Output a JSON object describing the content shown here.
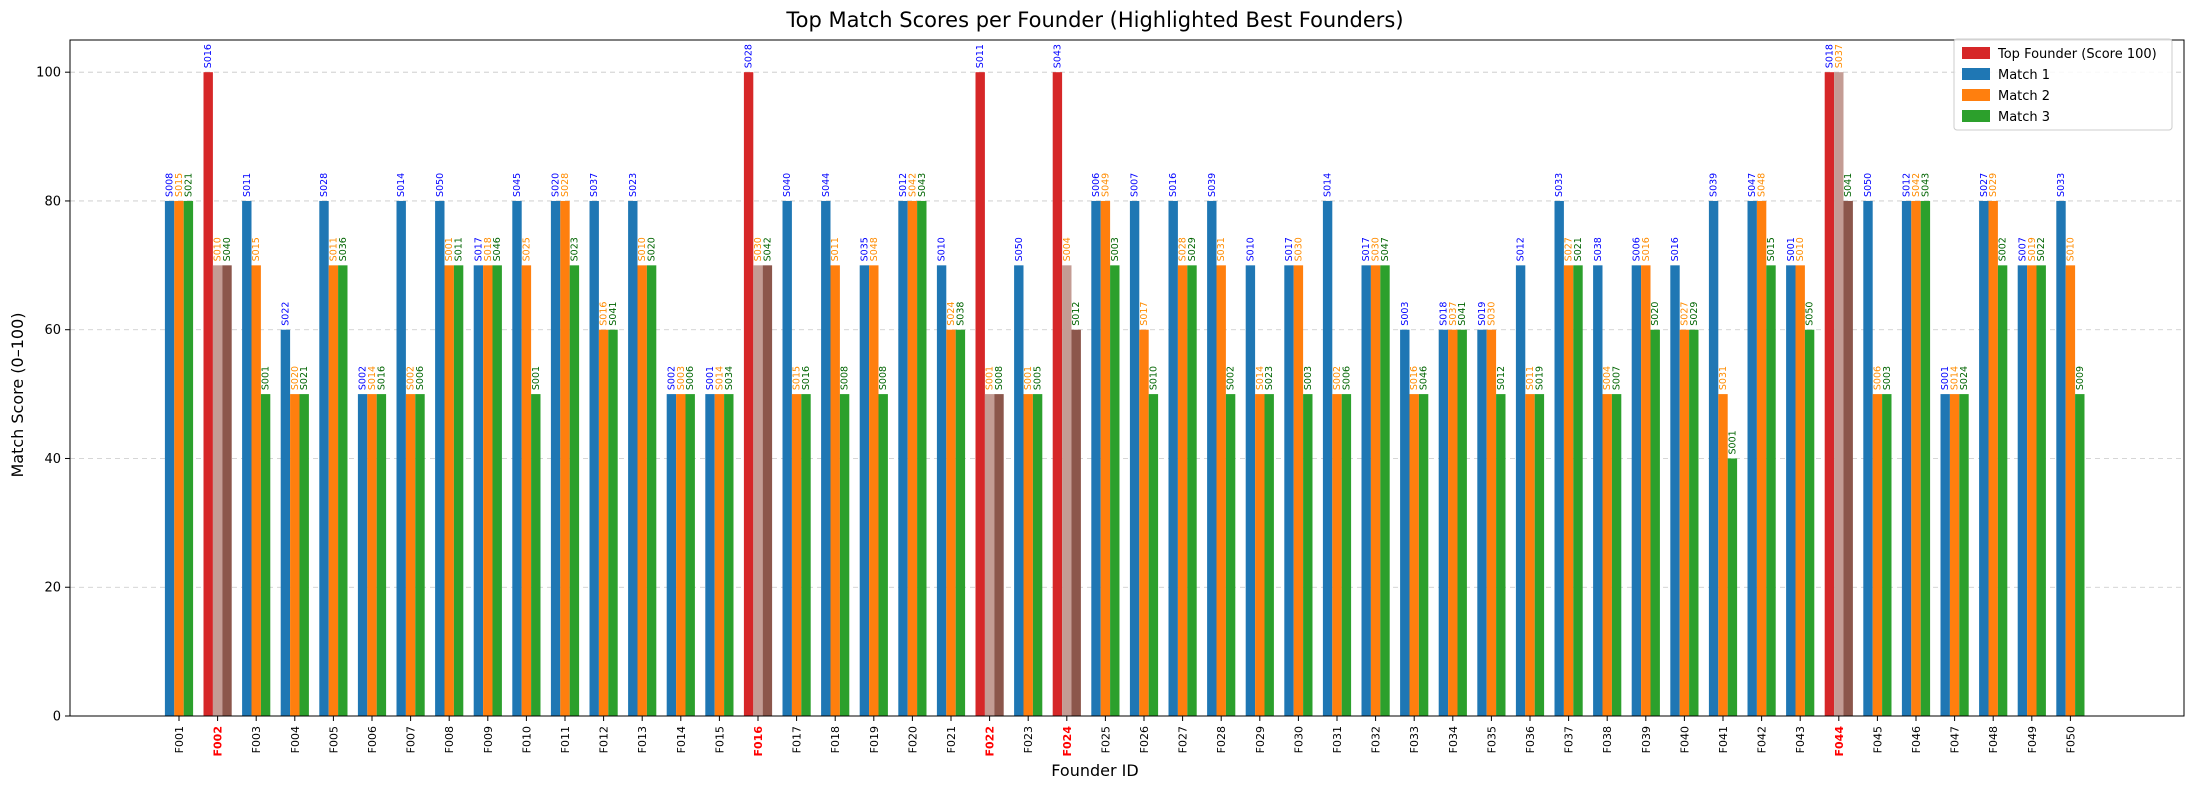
{
  "chart_data": {
    "type": "bar",
    "title": "Top Match Scores per Founder (Highlighted Best Founders)",
    "xlabel": "Founder ID",
    "ylabel": "Match Score (0–100)",
    "ylim": [
      0,
      105
    ],
    "yticks": [
      0,
      20,
      40,
      60,
      80,
      100
    ],
    "grid": "y dashed",
    "legend_position": "top-right",
    "legend": [
      {
        "label": "Top Founder (Score 100)",
        "color": "#d62728"
      },
      {
        "label": "Match 1",
        "color": "#1f77b4"
      },
      {
        "label": "Match 2",
        "color": "#ff7f0e"
      },
      {
        "label": "Match 3",
        "color": "#2ca02c"
      }
    ],
    "colors": {
      "match1": "#1f77b4",
      "match2": "#ff7f0e",
      "match3": "#2ca02c",
      "top": "#d62728",
      "top_match2": "#c49c94",
      "top_match3": "#8c564b",
      "label1": "#0000ff",
      "label2": "#ff8c00",
      "label3": "#006400",
      "highlight_tick": "#ff0000"
    },
    "founders": [
      {
        "id": "F001",
        "top": false,
        "m": [
          [
            80,
            "S008"
          ],
          [
            80,
            "S015"
          ],
          [
            80,
            "S021"
          ]
        ]
      },
      {
        "id": "F002",
        "top": true,
        "m": [
          [
            100,
            "S016"
          ],
          [
            70,
            "S010"
          ],
          [
            70,
            "S040"
          ]
        ]
      },
      {
        "id": "F003",
        "top": false,
        "m": [
          [
            80,
            "S011"
          ],
          [
            70,
            "S015"
          ],
          [
            50,
            "S001"
          ]
        ]
      },
      {
        "id": "F004",
        "top": false,
        "m": [
          [
            60,
            "S022"
          ],
          [
            50,
            "S020"
          ],
          [
            50,
            "S021"
          ]
        ]
      },
      {
        "id": "F005",
        "top": false,
        "m": [
          [
            80,
            "S028"
          ],
          [
            70,
            "S011"
          ],
          [
            70,
            "S036"
          ]
        ]
      },
      {
        "id": "F006",
        "top": false,
        "m": [
          [
            50,
            "S002"
          ],
          [
            50,
            "S014"
          ],
          [
            50,
            "S016"
          ]
        ]
      },
      {
        "id": "F007",
        "top": false,
        "m": [
          [
            80,
            "S014"
          ],
          [
            50,
            "S002"
          ],
          [
            50,
            "S006"
          ]
        ]
      },
      {
        "id": "F008",
        "top": false,
        "m": [
          [
            80,
            "S050"
          ],
          [
            70,
            "S001"
          ],
          [
            70,
            "S011"
          ]
        ]
      },
      {
        "id": "F009",
        "top": false,
        "m": [
          [
            70,
            "S017"
          ],
          [
            70,
            "S018"
          ],
          [
            70,
            "S046"
          ]
        ]
      },
      {
        "id": "F010",
        "top": false,
        "m": [
          [
            80,
            "S045"
          ],
          [
            70,
            "S025"
          ],
          [
            50,
            "S001"
          ]
        ]
      },
      {
        "id": "F011",
        "top": false,
        "m": [
          [
            80,
            "S020"
          ],
          [
            80,
            "S028"
          ],
          [
            70,
            "S023"
          ]
        ]
      },
      {
        "id": "F012",
        "top": false,
        "m": [
          [
            80,
            "S037"
          ],
          [
            60,
            "S016"
          ],
          [
            60,
            "S041"
          ]
        ]
      },
      {
        "id": "F013",
        "top": false,
        "m": [
          [
            80,
            "S023"
          ],
          [
            70,
            "S010"
          ],
          [
            70,
            "S020"
          ]
        ]
      },
      {
        "id": "F014",
        "top": false,
        "m": [
          [
            50,
            "S002"
          ],
          [
            50,
            "S003"
          ],
          [
            50,
            "S006"
          ]
        ]
      },
      {
        "id": "F015",
        "top": false,
        "m": [
          [
            50,
            "S001"
          ],
          [
            50,
            "S014"
          ],
          [
            50,
            "S034"
          ]
        ]
      },
      {
        "id": "F016",
        "top": true,
        "m": [
          [
            100,
            "S028"
          ],
          [
            70,
            "S030"
          ],
          [
            70,
            "S042"
          ]
        ]
      },
      {
        "id": "F017",
        "top": false,
        "m": [
          [
            80,
            "S040"
          ],
          [
            50,
            "S015"
          ],
          [
            50,
            "S016"
          ]
        ]
      },
      {
        "id": "F018",
        "top": false,
        "m": [
          [
            80,
            "S044"
          ],
          [
            70,
            "S011"
          ],
          [
            50,
            "S008"
          ]
        ]
      },
      {
        "id": "F019",
        "top": false,
        "m": [
          [
            70,
            "S035"
          ],
          [
            70,
            "S048"
          ],
          [
            50,
            "S008"
          ]
        ]
      },
      {
        "id": "F020",
        "top": false,
        "m": [
          [
            80,
            "S012"
          ],
          [
            80,
            "S042"
          ],
          [
            80,
            "S043"
          ]
        ]
      },
      {
        "id": "F021",
        "top": false,
        "m": [
          [
            70,
            "S010"
          ],
          [
            60,
            "S024"
          ],
          [
            60,
            "S038"
          ]
        ]
      },
      {
        "id": "F022",
        "top": true,
        "m": [
          [
            100,
            "S011"
          ],
          [
            50,
            "S001"
          ],
          [
            50,
            "S008"
          ]
        ]
      },
      {
        "id": "F023",
        "top": false,
        "m": [
          [
            70,
            "S050"
          ],
          [
            50,
            "S001"
          ],
          [
            50,
            "S005"
          ]
        ]
      },
      {
        "id": "F024",
        "top": true,
        "m": [
          [
            100,
            "S043"
          ],
          [
            70,
            "S004"
          ],
          [
            60,
            "S012"
          ]
        ]
      },
      {
        "id": "F025",
        "top": false,
        "m": [
          [
            80,
            "S006"
          ],
          [
            80,
            "S049"
          ],
          [
            70,
            "S003"
          ]
        ]
      },
      {
        "id": "F026",
        "top": false,
        "m": [
          [
            80,
            "S007"
          ],
          [
            60,
            "S017"
          ],
          [
            50,
            "S010"
          ]
        ]
      },
      {
        "id": "F027",
        "top": false,
        "m": [
          [
            80,
            "S016"
          ],
          [
            70,
            "S028"
          ],
          [
            70,
            "S029"
          ]
        ]
      },
      {
        "id": "F028",
        "top": false,
        "m": [
          [
            80,
            "S039"
          ],
          [
            70,
            "S031"
          ],
          [
            50,
            "S002"
          ]
        ]
      },
      {
        "id": "F029",
        "top": false,
        "m": [
          [
            70,
            "S010"
          ],
          [
            50,
            "S014"
          ],
          [
            50,
            "S023"
          ]
        ]
      },
      {
        "id": "F030",
        "top": false,
        "m": [
          [
            70,
            "S017"
          ],
          [
            70,
            "S030"
          ],
          [
            50,
            "S003"
          ]
        ]
      },
      {
        "id": "F031",
        "top": false,
        "m": [
          [
            80,
            "S014"
          ],
          [
            50,
            "S002"
          ],
          [
            50,
            "S006"
          ]
        ]
      },
      {
        "id": "F032",
        "top": false,
        "m": [
          [
            70,
            "S017"
          ],
          [
            70,
            "S030"
          ],
          [
            70,
            "S047"
          ]
        ]
      },
      {
        "id": "F033",
        "top": false,
        "m": [
          [
            60,
            "S003"
          ],
          [
            50,
            "S016"
          ],
          [
            50,
            "S046"
          ]
        ]
      },
      {
        "id": "F034",
        "top": false,
        "m": [
          [
            60,
            "S018"
          ],
          [
            60,
            "S037"
          ],
          [
            60,
            "S041"
          ]
        ]
      },
      {
        "id": "F035",
        "top": false,
        "m": [
          [
            60,
            "S019"
          ],
          [
            60,
            "S030"
          ],
          [
            50,
            "S012"
          ]
        ]
      },
      {
        "id": "F036",
        "top": false,
        "m": [
          [
            70,
            "S012"
          ],
          [
            50,
            "S011"
          ],
          [
            50,
            "S019"
          ]
        ]
      },
      {
        "id": "F037",
        "top": false,
        "m": [
          [
            80,
            "S033"
          ],
          [
            70,
            "S027"
          ],
          [
            70,
            "S021"
          ]
        ]
      },
      {
        "id": "F038",
        "top": false,
        "m": [
          [
            70,
            "S038"
          ],
          [
            50,
            "S004"
          ],
          [
            50,
            "S007"
          ]
        ]
      },
      {
        "id": "F039",
        "top": false,
        "m": [
          [
            70,
            "S006"
          ],
          [
            70,
            "S016"
          ],
          [
            60,
            "S020"
          ]
        ]
      },
      {
        "id": "F040",
        "top": false,
        "m": [
          [
            70,
            "S016"
          ],
          [
            60,
            "S027"
          ],
          [
            60,
            "S029"
          ]
        ]
      },
      {
        "id": "F041",
        "top": false,
        "m": [
          [
            80,
            "S039"
          ],
          [
            50,
            "S031"
          ],
          [
            40,
            "S001"
          ]
        ]
      },
      {
        "id": "F042",
        "top": false,
        "m": [
          [
            80,
            "S047"
          ],
          [
            80,
            "S048"
          ],
          [
            70,
            "S015"
          ]
        ]
      },
      {
        "id": "F043",
        "top": false,
        "m": [
          [
            70,
            "S001"
          ],
          [
            70,
            "S010"
          ],
          [
            60,
            "S050"
          ]
        ]
      },
      {
        "id": "F044",
        "top": true,
        "m": [
          [
            100,
            "S018"
          ],
          [
            100,
            "S037"
          ],
          [
            80,
            "S041"
          ]
        ]
      },
      {
        "id": "F045",
        "top": false,
        "m": [
          [
            80,
            "S050"
          ],
          [
            50,
            "S006"
          ],
          [
            50,
            "S003"
          ]
        ]
      },
      {
        "id": "F046",
        "top": false,
        "m": [
          [
            80,
            "S012"
          ],
          [
            80,
            "S042"
          ],
          [
            80,
            "S043"
          ]
        ]
      },
      {
        "id": "F047",
        "top": false,
        "m": [
          [
            50,
            "S001"
          ],
          [
            50,
            "S014"
          ],
          [
            50,
            "S024"
          ]
        ]
      },
      {
        "id": "F048",
        "top": false,
        "m": [
          [
            80,
            "S027"
          ],
          [
            80,
            "S029"
          ],
          [
            70,
            "S002"
          ]
        ]
      },
      {
        "id": "F049",
        "top": false,
        "m": [
          [
            70,
            "S007"
          ],
          [
            70,
            "S019"
          ],
          [
            70,
            "S022"
          ]
        ]
      },
      {
        "id": "F050",
        "top": false,
        "m": [
          [
            80,
            "S033"
          ],
          [
            70,
            "S010"
          ],
          [
            50,
            "S009"
          ]
        ]
      }
    ]
  }
}
